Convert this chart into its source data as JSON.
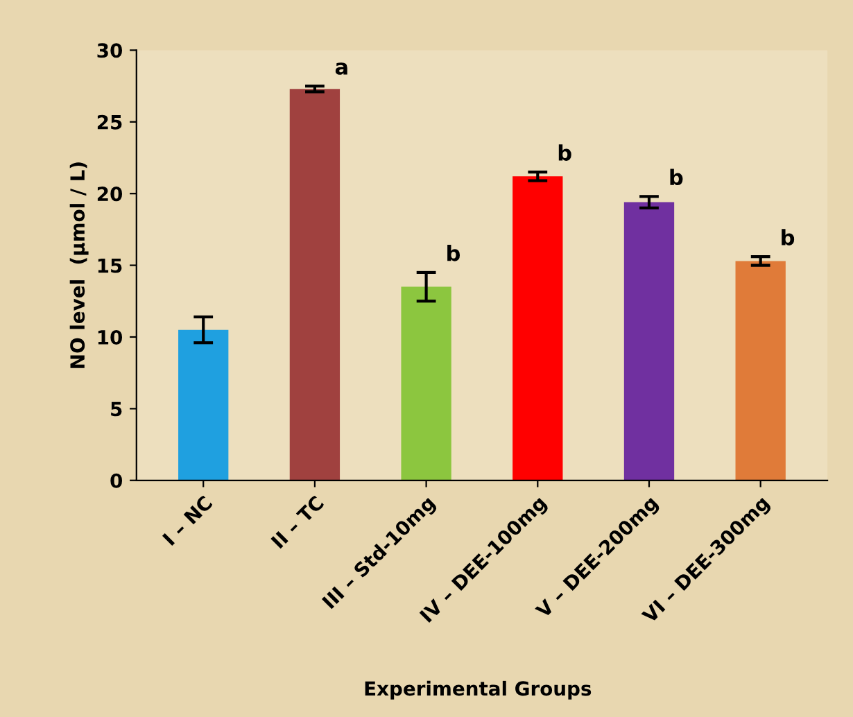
{
  "chart_data": {
    "type": "bar",
    "xlabel": "Experimental Groups",
    "ylabel": "NO level  (µmol / L)",
    "categories": [
      "I – NC",
      "II – TC",
      "III – Std-10mg",
      "IV – DEE-100mg",
      "V – DEE-200mg",
      "VI – DEE-300mg"
    ],
    "values": [
      10.5,
      27.3,
      13.5,
      21.2,
      19.4,
      15.3
    ],
    "errors": [
      0.9,
      0.2,
      1.0,
      0.3,
      0.4,
      0.3
    ],
    "colors": [
      "#1fa0e0",
      "#a0413f",
      "#8cc63f",
      "#ff0000",
      "#7030a0",
      "#e07b39"
    ],
    "ylim": [
      0,
      30
    ],
    "yticks": [
      0,
      5,
      10,
      15,
      20,
      25,
      30
    ],
    "grid": false,
    "annotations": [
      {
        "text": "a",
        "x": "II – TC",
        "y": 27.5
      },
      {
        "text": "b",
        "x": "III – Std-10mg",
        "y": 14.5
      },
      {
        "text": "b",
        "x": "IV – DEE-100mg",
        "y": 21.5
      },
      {
        "text": "b",
        "x": "V – DEE-200mg",
        "y": 19.8
      },
      {
        "text": "b",
        "x": "VI – DEE-300mg",
        "y": 15.6
      }
    ]
  }
}
